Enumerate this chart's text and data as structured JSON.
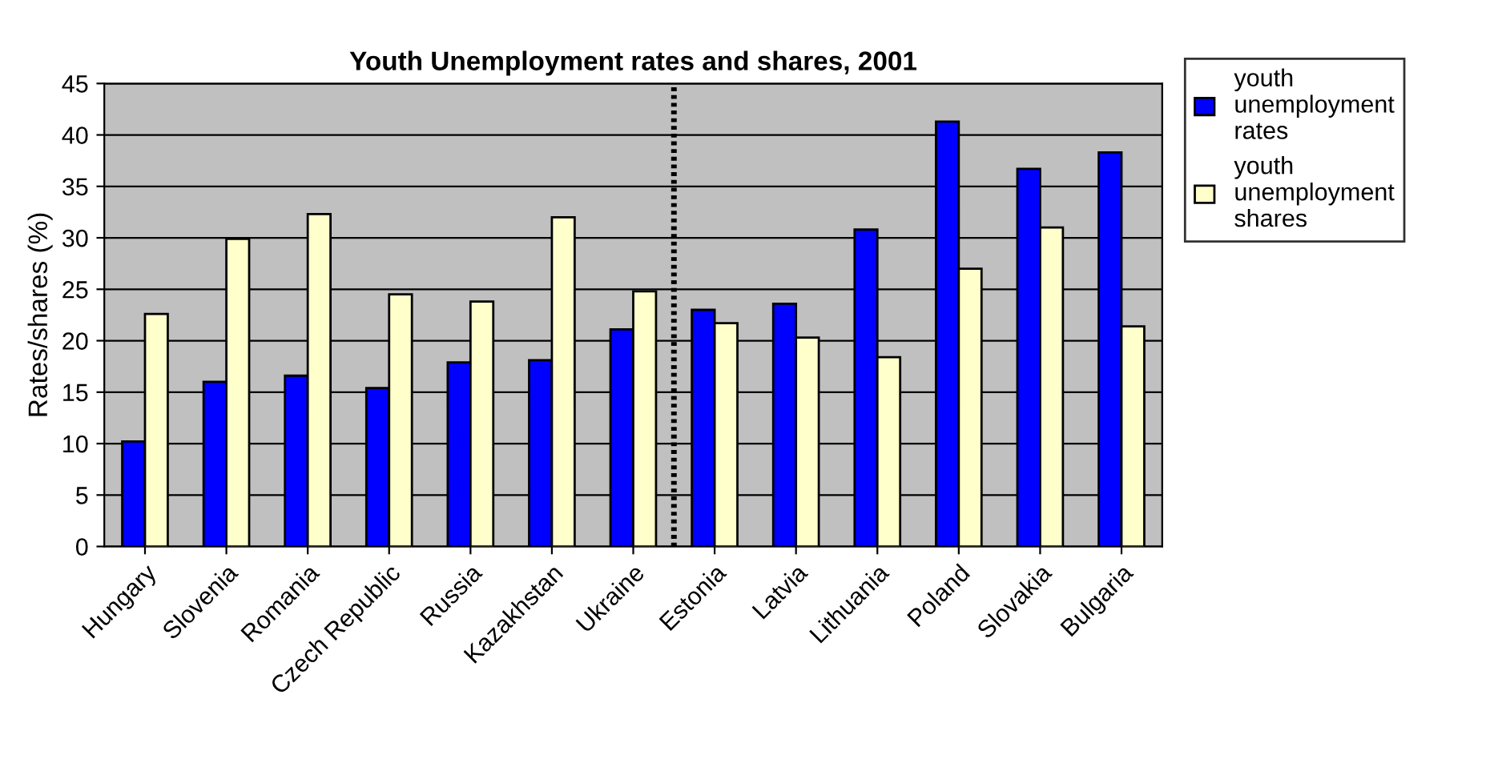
{
  "chart_data": {
    "type": "bar",
    "title": "Youth Unemployment rates and shares, 2001",
    "ylabel": "Rates/shares (%)",
    "categories": [
      "Hungary",
      "Slovenia",
      "Romania",
      "Czech Republic",
      "Russia",
      "Kazakhstan",
      "Ukraine",
      "Estonia",
      "Latvia",
      "Lithuania",
      "Poland",
      "Slovakia",
      "Bulgaria"
    ],
    "series": [
      {
        "name": "youth unemployment rates",
        "color": "#0000ff",
        "values": [
          10.2,
          16.0,
          16.6,
          15.4,
          17.9,
          18.1,
          21.1,
          23.0,
          23.6,
          30.8,
          41.3,
          36.7,
          38.3
        ]
      },
      {
        "name": "youth unemployment shares",
        "color": "#ffffcc",
        "values": [
          22.6,
          29.9,
          32.3,
          24.5,
          23.8,
          32.0,
          24.8,
          21.7,
          20.3,
          18.4,
          27.0,
          31.0,
          21.4
        ]
      }
    ],
    "ylim": [
      0,
      45
    ],
    "yticks": [
      0,
      5,
      10,
      15,
      20,
      25,
      30,
      35,
      40,
      45
    ],
    "grid": "y",
    "legend": "top right"
  }
}
